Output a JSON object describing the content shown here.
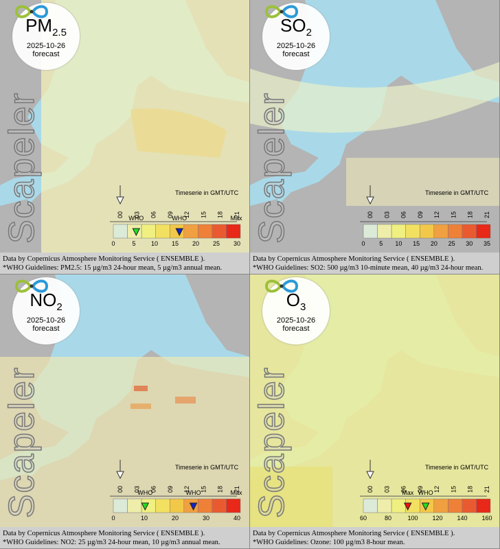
{
  "panels": [
    {
      "title": {
        "main": "PM",
        "sub": "2.5"
      },
      "date": "2025-10-26",
      "status": "forecast",
      "watermark": "Scapeler",
      "timeserie": "Timeserie in GMT/UTC",
      "hours": [
        "00",
        "03",
        "06",
        "09",
        "12",
        "15",
        "18",
        "21"
      ],
      "scale_ticks": [
        0,
        5,
        10,
        15,
        20,
        25,
        30
      ],
      "max_label": "Max",
      "markers": [
        {
          "label": "WHO",
          "color": "#22dd22"
        },
        {
          "label": "WHO",
          "color": "#1122cc"
        }
      ],
      "footer": [
        "Data by Copernicus Atmosphere Monitoring Service ( ENSEMBLE ).",
        "*WHO Guidelines: PM2.5: 15 µg/m3 24-hour mean, 5 µg/m3 annual mean."
      ]
    },
    {
      "title": {
        "main": "SO",
        "sub": "2"
      },
      "date": "2025-10-26",
      "status": "forecast",
      "watermark": "Scapeler",
      "timeserie": "Timeserie in GMT/UTC",
      "hours": [
        "00",
        "03",
        "06",
        "09",
        "12",
        "15",
        "18",
        "21"
      ],
      "scale_ticks": [
        0,
        5,
        10,
        15,
        20,
        25,
        30,
        35
      ],
      "markers": [],
      "footer": [
        "Data by Copernicus Atmosphere Monitoring Service ( ENSEMBLE ).",
        "*WHO Guidelines: SO2: 500 µg/m3 10-minute mean, 40 µg/m3 24-hour mean."
      ]
    },
    {
      "title": {
        "main": "NO",
        "sub": "2"
      },
      "date": "2025-10-26",
      "status": "forecast",
      "watermark": "Scapeler",
      "timeserie": "Timeserie in GMT/UTC",
      "hours": [
        "00",
        "03",
        "06",
        "09",
        "12",
        "15",
        "18",
        "21"
      ],
      "scale_ticks": [
        0,
        10,
        20,
        30,
        40
      ],
      "max_label": "Max",
      "markers": [
        {
          "label": "WHO",
          "color": "#22dd22"
        },
        {
          "label": "WHO",
          "color": "#1122cc"
        }
      ],
      "footer": [
        "Data by Copernicus Atmosphere Monitoring Service ( ENSEMBLE ).",
        "*WHO Guidelines: NO2: 25 µg/m3 24-hour mean, 10 µg/m3 annual mean."
      ]
    },
    {
      "title": {
        "main": "O",
        "sub": "3"
      },
      "date": "2025-10-26",
      "status": "forecast",
      "watermark": "Scapeler",
      "timeserie": "Timeserie in GMT/UTC",
      "hours": [
        "00",
        "03",
        "06",
        "09",
        "12",
        "15",
        "18",
        "21"
      ],
      "scale_ticks": [
        60,
        80,
        100,
        120,
        140,
        160
      ],
      "markers": [
        {
          "label": "Max",
          "color": "#ee1111"
        },
        {
          "label": "WHO",
          "color": "#22dd22"
        }
      ],
      "footer": [
        "Data by Copernicus Atmosphere Monitoring Service ( ENSEMBLE ).",
        "*WHO Guidelines: Ozone: 100 µg/m3 8-hour mean."
      ]
    }
  ]
}
